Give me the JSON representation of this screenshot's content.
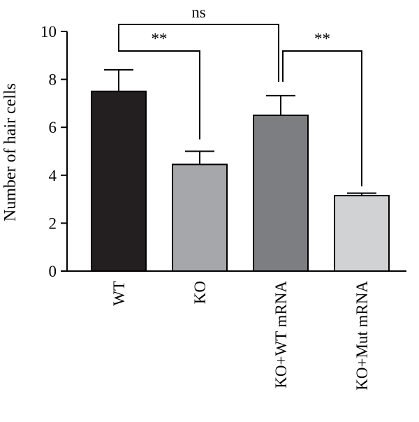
{
  "chart_data": {
    "type": "bar",
    "categories": [
      "WT",
      "KO",
      "KO+WT mRNA",
      "KO+Mut mRNA"
    ],
    "values": [
      7.5,
      4.45,
      6.5,
      3.15
    ],
    "errors": [
      0.9,
      0.55,
      0.82,
      0.1
    ],
    "colors": [
      "#231f20",
      "#a6a7aa",
      "#7d7e81",
      "#d1d2d4"
    ],
    "title": "",
    "xlabel": "",
    "ylabel": "Number of hair cells",
    "ylim": [
      0,
      10
    ],
    "yticks": [
      "0",
      "2",
      "4",
      "6",
      "8",
      "10"
    ],
    "grid": false,
    "significance": [
      {
        "from": 0,
        "to": 1,
        "label": "**"
      },
      {
        "from": 0,
        "to": 2,
        "label": "ns"
      },
      {
        "from": 2,
        "to": 3,
        "label": "**"
      }
    ]
  }
}
